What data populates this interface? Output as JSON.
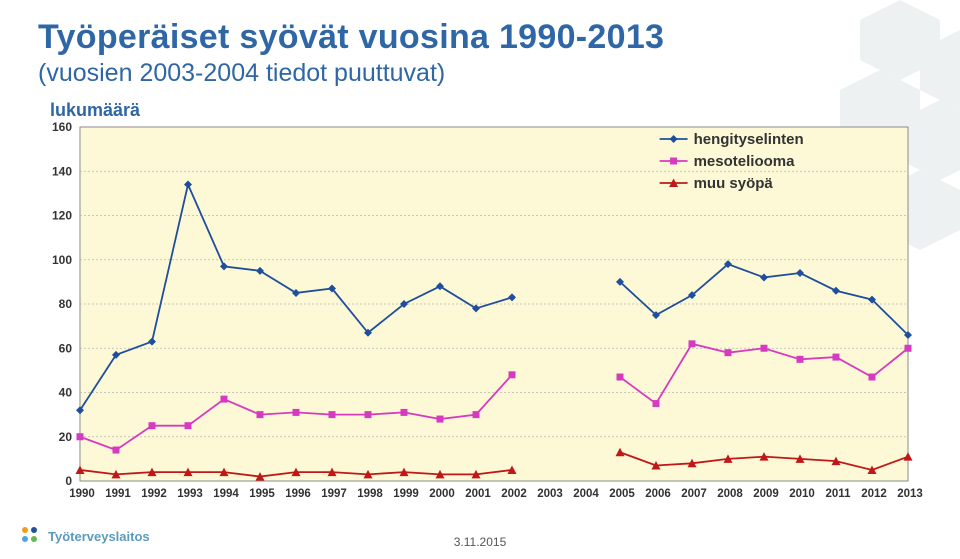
{
  "title": "Työperäiset syövät vuosina 1990-2013",
  "subtitle": "(vuosien 2003-2004 tiedot puuttuvat)",
  "ylabel": "lukumäärä",
  "footer_brand": "Työterveyslaitos",
  "footer_date": "3.11.2015",
  "chart": {
    "type": "line",
    "background_color": "#fdf9d6",
    "grid_color": "#b7b7b7",
    "plot_border_color": "#8a8a8a",
    "ylim": [
      0,
      160
    ],
    "ytick_step": 20,
    "yticks": [
      0,
      20,
      40,
      60,
      80,
      100,
      120,
      140,
      160
    ],
    "x_categories": [
      "1990",
      "1991",
      "1992",
      "1993",
      "1994",
      "1995",
      "1996",
      "1997",
      "1998",
      "1999",
      "2000",
      "2001",
      "2002",
      "2003",
      "2004",
      "2005",
      "2006",
      "2007",
      "2008",
      "2009",
      "2010",
      "2011",
      "2012",
      "2013"
    ],
    "legend": {
      "items": [
        {
          "label": "hengityselinten",
          "color": "#1f4e9c",
          "marker": "diamond"
        },
        {
          "label": "mesoteliooma",
          "color": "#d63ac0",
          "marker": "square"
        },
        {
          "label": "muu syöpä",
          "color": "#c01818",
          "marker": "triangle"
        }
      ]
    },
    "series": [
      {
        "name": "hengityselinten",
        "color": "#1f4e9c",
        "marker": "diamond",
        "line_width": 1.8,
        "values": [
          32,
          57,
          63,
          134,
          97,
          95,
          85,
          87,
          67,
          80,
          88,
          78,
          83,
          null,
          null,
          90,
          75,
          84,
          98,
          92,
          94,
          86,
          82,
          66
        ]
      },
      {
        "name": "mesoteliooma",
        "color": "#d63ac0",
        "marker": "square",
        "line_width": 1.8,
        "values": [
          20,
          14,
          25,
          25,
          37,
          30,
          31,
          30,
          30,
          31,
          28,
          30,
          48,
          null,
          null,
          47,
          35,
          62,
          58,
          60,
          55,
          56,
          47,
          60
        ]
      },
      {
        "name": "muu syöpä",
        "color": "#c01818",
        "marker": "triangle",
        "line_width": 1.8,
        "values": [
          5,
          3,
          4,
          4,
          4,
          2,
          4,
          4,
          3,
          4,
          3,
          3,
          5,
          null,
          null,
          13,
          7,
          8,
          10,
          11,
          10,
          9,
          5,
          11
        ]
      }
    ]
  }
}
